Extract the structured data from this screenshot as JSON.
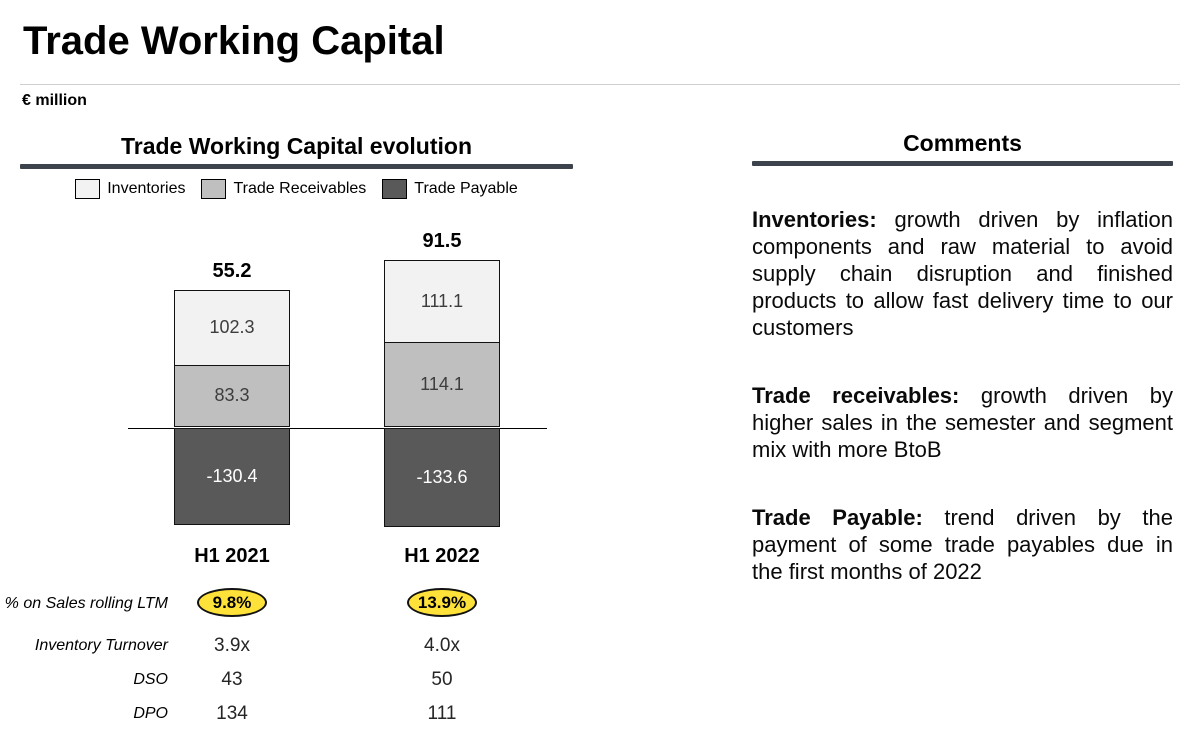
{
  "page": {
    "title": "Trade Working Capital",
    "unit_label": "€ million"
  },
  "chart_section": {
    "title": "Trade Working Capital evolution"
  },
  "chart_data": {
    "type": "bar",
    "stacked": true,
    "title": "Trade Working Capital evolution",
    "categories": [
      "H1 2021",
      "H1 2022"
    ],
    "series": [
      {
        "name": "Inventories",
        "values": [
          102.3,
          111.1
        ],
        "color": "#f2f2f2"
      },
      {
        "name": "Trade Receivables",
        "values": [
          83.3,
          114.1
        ],
        "color": "#bfbfbf"
      },
      {
        "name": "Trade Payable",
        "values": [
          -130.4,
          -133.6
        ],
        "color": "#595959"
      }
    ],
    "totals": [
      55.2,
      91.5
    ],
    "legend_position": "top",
    "grid": false,
    "zero_baseline": true,
    "unit": "€ million"
  },
  "metrics": {
    "rows": [
      {
        "label": "% on Sales rolling LTM",
        "values": [
          "9.8%",
          "13.9%"
        ],
        "highlight": true
      },
      {
        "label": "Inventory Turnover",
        "values": [
          "3.9x",
          "4.0x"
        ],
        "highlight": false
      },
      {
        "label": "DSO",
        "values": [
          "43",
          "50"
        ],
        "highlight": false
      },
      {
        "label": "DPO",
        "values": [
          "134",
          "111"
        ],
        "highlight": false
      }
    ]
  },
  "comments": {
    "title": "Comments",
    "paragraphs": [
      {
        "lead": "Inventories:",
        "text": "growth driven by inflation components and raw material to avoid supply chain disruption and finished products to allow fast delivery time to our customers"
      },
      {
        "lead": "Trade receivables:",
        "text": "growth driven by higher sales in the semester and segment mix with more BtoB"
      },
      {
        "lead": "Trade Payable:",
        "text": "trend driven by the payment of some trade payables due in the first months of 2022"
      }
    ]
  },
  "colors": {
    "inventories": "#f2f2f2",
    "trade_receivables": "#bfbfbf",
    "trade_payable": "#595959",
    "highlight_yellow": "#fee23a",
    "underline_dark": "#3d434c"
  }
}
